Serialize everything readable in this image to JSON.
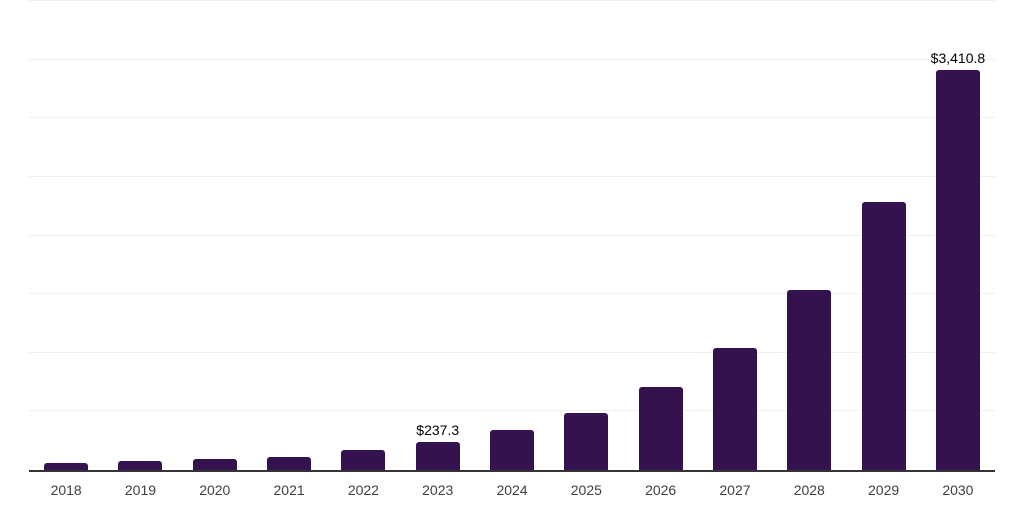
{
  "chart_data": {
    "type": "bar",
    "title": "",
    "xlabel": "",
    "ylabel": "",
    "legend": "none",
    "categories": [
      "2018",
      "2019",
      "2020",
      "2021",
      "2022",
      "2023",
      "2024",
      "2025",
      "2026",
      "2027",
      "2028",
      "2029",
      "2030"
    ],
    "values": [
      58,
      75,
      92,
      115,
      170,
      237.3,
      340,
      490,
      708,
      1040,
      1538,
      2290,
      3410.8
    ],
    "data_labels": {
      "2023": "$237.3",
      "2030": "$3,410.8"
    },
    "ylim": [
      0,
      4000
    ],
    "gridlines": {
      "interval": 500,
      "horizontal_visible": true,
      "y_tick_labels_visible": false
    }
  },
  "colors": {
    "bar": "#34124e",
    "gridline": "#f0f0f0",
    "axis_line": "#333333",
    "x_tick_label": "#404040",
    "data_label": "#000000",
    "background": "#ffffff"
  }
}
